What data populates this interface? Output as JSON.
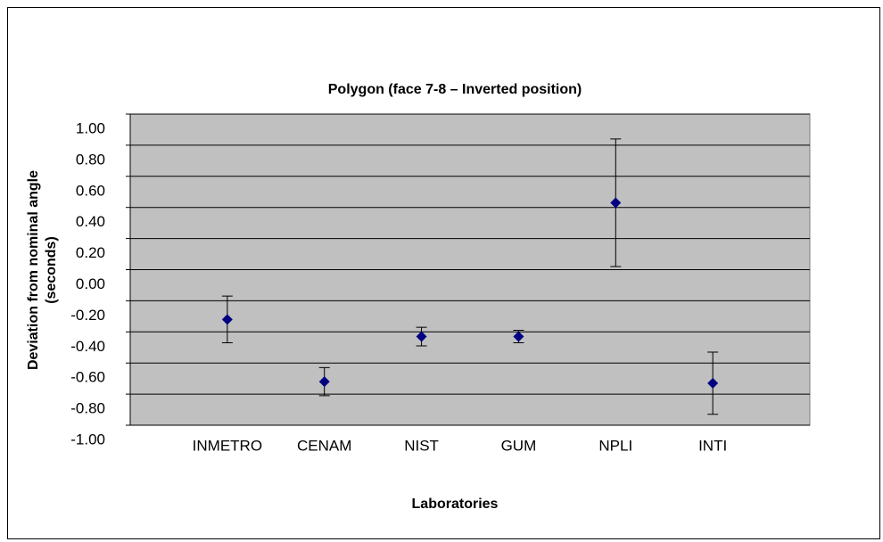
{
  "chart_data": {
    "type": "scatter",
    "title": "Polygon (face 7-8 – Inverted position)",
    "x_label": "Laboratories",
    "y_label": [
      "Deviation from nominal angle",
      "(seconds)"
    ],
    "categories": [
      "INMETRO",
      "CENAM",
      "NIST",
      "GUM",
      "NPLI",
      "INTI"
    ],
    "series": [
      {
        "color": "#000080",
        "values": [
          -0.32,
          -0.72,
          -0.43,
          -0.43,
          0.43,
          -0.73
        ],
        "errors": [
          0.15,
          0.09,
          0.06,
          0.04,
          0.41,
          0.2
        ]
      }
    ],
    "ylim": [
      -1,
      1
    ],
    "yticks": [
      {
        "value": -1,
        "label": "-1.00"
      },
      {
        "value": -0.8,
        "label": "-0.80"
      },
      {
        "value": -0.6,
        "label": "-0.60"
      },
      {
        "value": -0.4,
        "label": "-0.40"
      },
      {
        "value": -0.2,
        "label": "-0.20"
      },
      {
        "value": 0,
        "label": "0.00"
      },
      {
        "value": 0.2,
        "label": "0.20"
      },
      {
        "value": 0.4,
        "label": "0.40"
      },
      {
        "value": 0.6,
        "label": "0.60"
      },
      {
        "value": 0.8,
        "label": "0.80"
      },
      {
        "value": 1,
        "label": "1.00"
      }
    ],
    "grid": true,
    "plot_background": "#c0c0c0"
  }
}
